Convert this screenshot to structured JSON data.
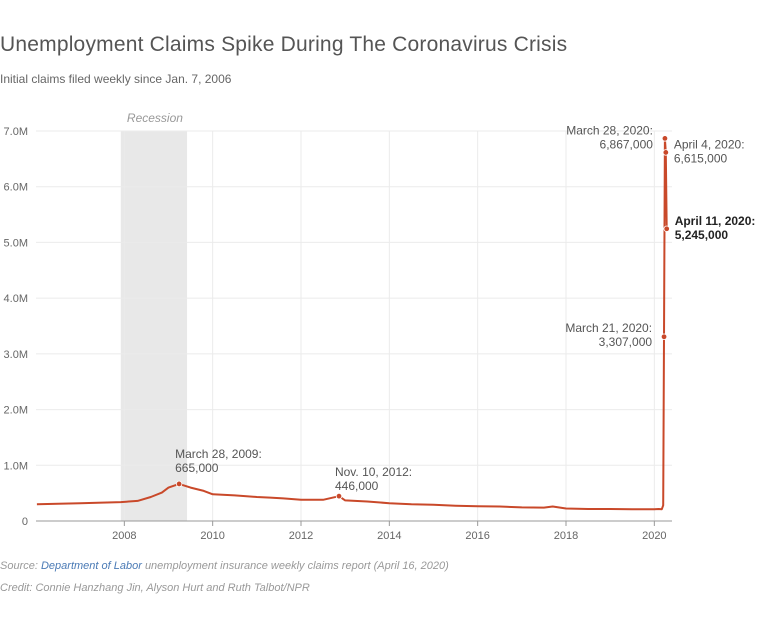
{
  "header": {
    "title": "Unemployment Claims Spike During The Coronavirus Crisis",
    "subtitle": "Initial claims filed weekly since Jan. 7, 2006"
  },
  "footer": {
    "source_label": "Source:",
    "source_link": "Department of Labor",
    "source_rest": "unemployment insurance weekly claims report (April 16, 2020)",
    "credit": "Credit: Connie Hanzhang Jin, Alyson Hurt and Ruth Talbot/NPR"
  },
  "colors": {
    "line": "#c9492a",
    "recession": "#e8e8e8",
    "grid": "#ebebeb"
  },
  "chart_data": {
    "type": "line",
    "title": "Unemployment Claims Spike During The Coronavirus Crisis",
    "subtitle": "Initial claims filed weekly since Jan. 7, 2006",
    "xlabel": "",
    "ylabel": "",
    "xlim": [
      2006.0,
      2020.4
    ],
    "ylim": [
      0,
      7000000
    ],
    "grid": true,
    "x_ticks": [
      2008,
      2010,
      2012,
      2014,
      2016,
      2018,
      2020
    ],
    "y_ticks": [
      0,
      1000000,
      2000000,
      3000000,
      4000000,
      5000000,
      6000000,
      7000000
    ],
    "y_tick_labels": [
      "0",
      "1.0M",
      "2.0M",
      "3.0M",
      "4.0M",
      "5.0M",
      "6.0M",
      "7.0M"
    ],
    "shaded_regions": [
      {
        "label": "Recession",
        "start": 2007.92,
        "end": 2009.42
      }
    ],
    "series": [
      {
        "x": [
          2006.02,
          2006.5,
          2007.0,
          2007.5,
          2007.92,
          2008.3,
          2008.6,
          2008.85,
          2009.0,
          2009.24,
          2009.5,
          2009.8,
          2010.0,
          2010.5,
          2011.0,
          2011.3,
          2011.6,
          2012.0,
          2012.5,
          2012.86,
          2013.0,
          2013.5,
          2014.0,
          2014.5,
          2015.0,
          2015.5,
          2016.0,
          2016.5,
          2017.0,
          2017.5,
          2017.7,
          2018.0,
          2018.5,
          2019.0,
          2019.5,
          2020.0,
          2020.1,
          2020.17,
          2020.2,
          2020.22,
          2020.24,
          2020.26,
          2020.28
        ],
        "y": [
          300000,
          310000,
          320000,
          330000,
          340000,
          360000,
          430000,
          510000,
          600000,
          665000,
          600000,
          540000,
          480000,
          460000,
          430000,
          420000,
          405000,
          380000,
          380000,
          446000,
          370000,
          350000,
          320000,
          300000,
          290000,
          275000,
          265000,
          260000,
          245000,
          240000,
          260000,
          225000,
          215000,
          215000,
          210000,
          210000,
          215000,
          211000,
          281000,
          3307000,
          6867000,
          6615000,
          5245000
        ]
      }
    ],
    "annotations": [
      {
        "date": "March 28, 2009:",
        "value": "665,000",
        "x": 2009.24,
        "y": 665000
      },
      {
        "date": "Nov. 10, 2012:",
        "value": "446,000",
        "x": 2012.86,
        "y": 446000
      },
      {
        "date": "March 21, 2020:",
        "value": "3,307,000",
        "x": 2020.22,
        "y": 3307000
      },
      {
        "date": "March 28, 2020:",
        "value": "6,867,000",
        "x": 2020.24,
        "y": 6867000
      },
      {
        "date": "April 4, 2020:",
        "value": "6,615,000",
        "x": 2020.26,
        "y": 6615000
      },
      {
        "date": "April 11, 2020:",
        "value": "5,245,000",
        "x": 2020.28,
        "y": 5245000,
        "bold": true
      }
    ]
  }
}
